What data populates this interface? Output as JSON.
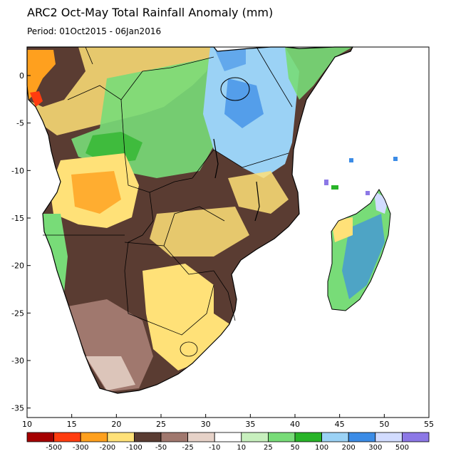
{
  "title": "ARC2 Oct-May Total Rainfall Anomaly (mm)",
  "period": "Period: 01Oct2015 - 06Jan2016",
  "map": {
    "lon_range": [
      10,
      55
    ],
    "lat_range": [
      -36,
      3
    ],
    "x_ticks": [
      "10",
      "15",
      "20",
      "25",
      "30",
      "35",
      "40",
      "45",
      "50",
      "55"
    ],
    "y_ticks": [
      "0",
      "-5",
      "-10",
      "-15",
      "-20",
      "-25",
      "-30",
      "-35"
    ],
    "ocean_color": "#ffffff"
  },
  "colorbar": {
    "colors": [
      "#a50000",
      "#ff3c0f",
      "#ffa01e",
      "#ffe178",
      "#5a3c32",
      "#a0786e",
      "#e6d2c8",
      "#ffffff",
      "#c8f0be",
      "#78dc78",
      "#28b428",
      "#9bd2f5",
      "#3c8ce6",
      "#d2dcff",
      "#8c78e6"
    ],
    "labels": [
      "-500",
      "-300",
      "-200",
      "-100",
      "-50",
      "-25",
      "-10",
      "10",
      "25",
      "50",
      "100",
      "200",
      "300",
      "500"
    ]
  }
}
